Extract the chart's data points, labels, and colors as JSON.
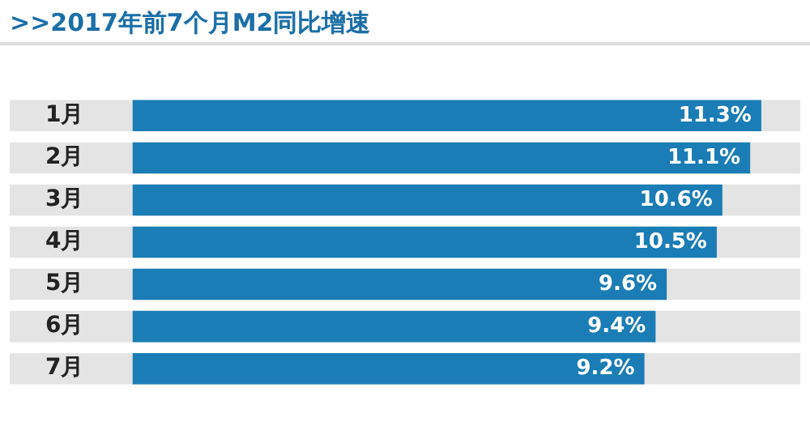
{
  "chart_data": {
    "type": "bar",
    "orientation": "horizontal",
    "title": ">>2017年前7个月M2同比增速",
    "categories": [
      "1月",
      "2月",
      "3月",
      "4月",
      "5月",
      "6月",
      "7月"
    ],
    "values": [
      11.3,
      11.1,
      10.6,
      10.5,
      9.6,
      9.4,
      9.2
    ],
    "value_labels": [
      "11.3%",
      "11.1%",
      "10.6%",
      "10.5%",
      "9.6%",
      "9.4%",
      "9.2%"
    ],
    "color": "#1b7db5"
  }
}
